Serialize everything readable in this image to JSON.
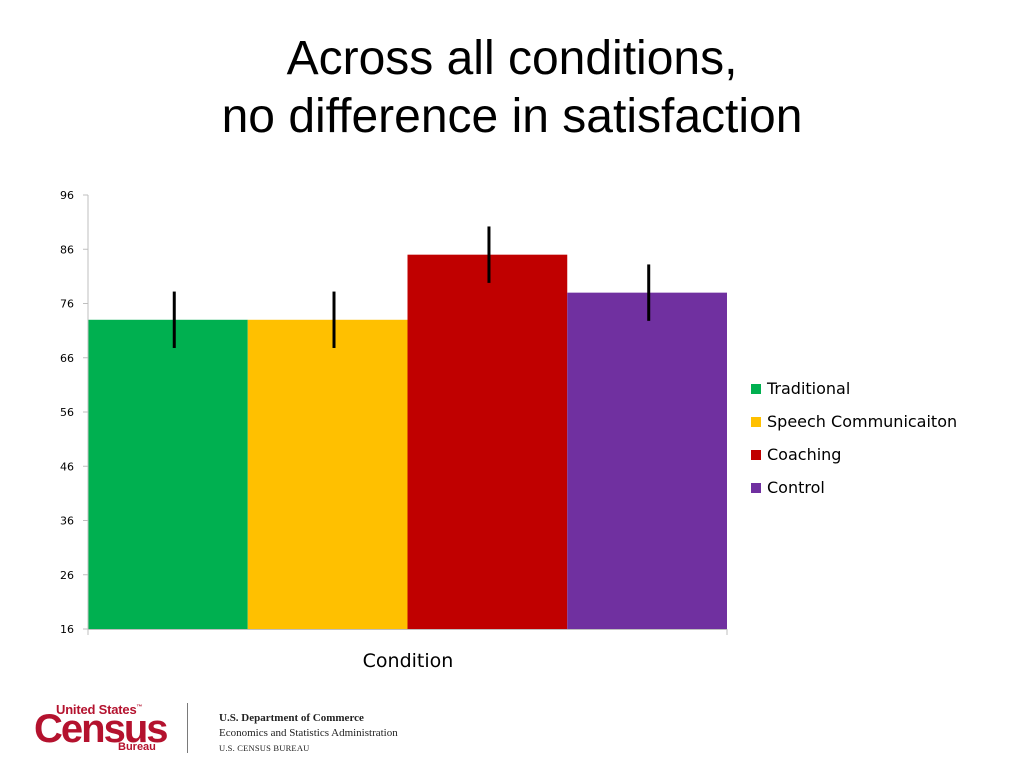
{
  "slide": {
    "title_line1": "Across all conditions,",
    "title_line2": "no difference in satisfaction"
  },
  "chart_data": {
    "type": "bar",
    "xlabel": "Condition",
    "ylabel": "",
    "ylim": [
      16,
      96
    ],
    "yticks": [
      16,
      26,
      36,
      46,
      56,
      66,
      76,
      86,
      96
    ],
    "grid": false,
    "legend_position": "right",
    "categories": [
      "Condition"
    ],
    "series": [
      {
        "name": "Traditional",
        "values": [
          73
        ],
        "error": [
          5.2
        ],
        "color": "#00b050"
      },
      {
        "name": "Speech Communicaiton",
        "values": [
          73
        ],
        "error": [
          5.2
        ],
        "color": "#ffc000"
      },
      {
        "name": "Coaching",
        "values": [
          85
        ],
        "error": [
          5.2
        ],
        "color": "#c00000"
      },
      {
        "name": "Control",
        "values": [
          78
        ],
        "error": [
          5.2
        ],
        "color": "#7030a0"
      }
    ]
  },
  "footer": {
    "logo_line1": "United States",
    "logo_tm": "™",
    "logo_main": "Census",
    "logo_bureau": "Bureau",
    "dept_line1": "U.S. Department of Commerce",
    "dept_line2": "Economics and Statistics Administration",
    "dept_line3": "U.S. CENSUS BUREAU"
  }
}
